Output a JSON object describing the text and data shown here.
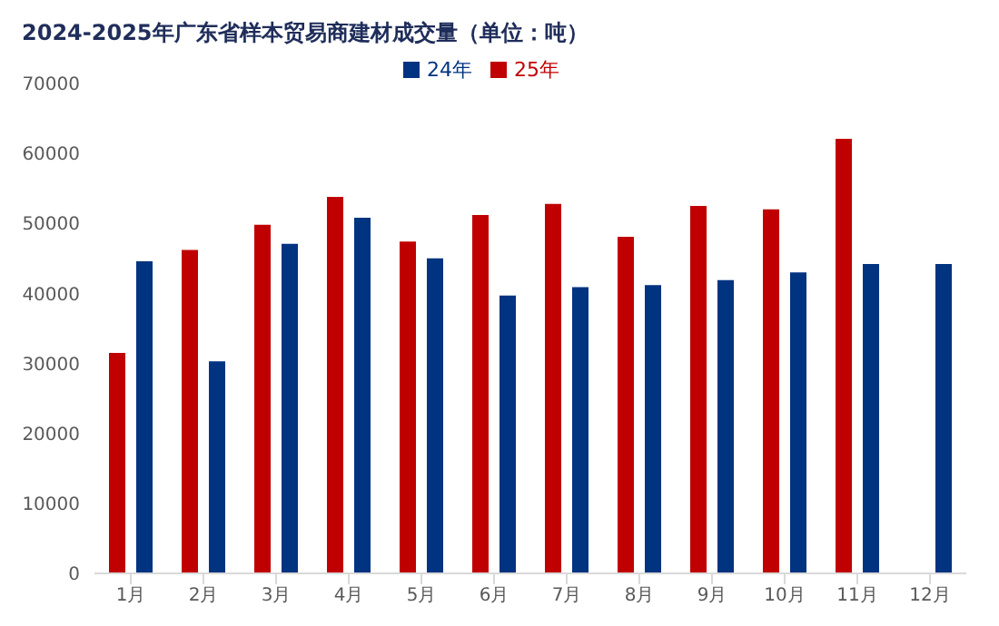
{
  "chart_data": {
    "type": "bar",
    "title": "2024-2025年广东省样本贸易商建材成交量（单位：吨）",
    "categories": [
      "1月",
      "2月",
      "3月",
      "4月",
      "5月",
      "6月",
      "7月",
      "8月",
      "9月",
      "10月",
      "11月",
      "12月"
    ],
    "series": [
      {
        "name": "25年",
        "color": "#c00000",
        "values": [
          31500,
          46200,
          49800,
          53800,
          47400,
          51200,
          52800,
          48100,
          52500,
          52000,
          62100,
          null
        ]
      },
      {
        "name": "24年",
        "color": "#003380",
        "values": [
          44600,
          30300,
          47100,
          50800,
          45000,
          39700,
          40900,
          41200,
          41900,
          43000,
          44200,
          44200
        ]
      }
    ],
    "ylim": [
      0,
      70000
    ],
    "yticks": [
      0,
      10000,
      20000,
      30000,
      40000,
      50000,
      60000,
      70000
    ],
    "grid": false,
    "legend": "top"
  }
}
